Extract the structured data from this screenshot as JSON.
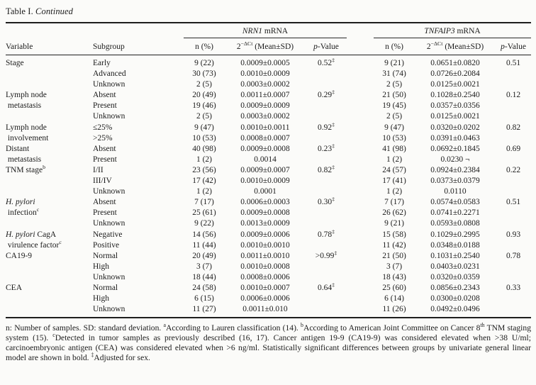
{
  "title": "Table I. *Continued*",
  "table": {
    "groups": [
      {
        "label": "*NRN1* mRNA"
      },
      {
        "label": "*TNFAIP3* mRNA"
      }
    ],
    "columns": [
      "Variable",
      "Subgroup",
      "n (%)",
      "2^−ΔCt^ (Mean±SD)",
      "*p*-Value",
      "n (%)",
      "2^−ΔCt^ (Mean±SD)",
      "*p*-Value"
    ],
    "rows": [
      [
        "Stage",
        "Early",
        "9 (22)",
        "0.0009±0.0005",
        "0.52^‡^",
        "9 (21)",
        "0.0651±0.0820",
        "0.51"
      ],
      [
        "",
        "Advanced",
        "30 (73)",
        "0.0010±0.0009",
        "",
        "31 (74)",
        "0.0726±0.2084",
        ""
      ],
      [
        "",
        "Unknown",
        "2 (5)",
        "0.0003±0.0002",
        "",
        "2 (5)",
        "0.0125±0.0021",
        ""
      ],
      [
        "Lymph node",
        "Absent",
        "20 (49)",
        "0.0011±0.0007",
        "0.29^‡^",
        "21 (50)",
        "0.1028±0.2540",
        "0.12"
      ],
      [
        " metastasis",
        "Present",
        "19 (46)",
        "0.0009±0.0009",
        "",
        "19 (45)",
        "0.0357±0.0356",
        ""
      ],
      [
        "",
        "Unknown",
        "2 (5)",
        "0.0003±0.0002",
        "",
        "2 (5)",
        "0.0125±0.0021",
        ""
      ],
      [
        "Lymph node",
        "≤25%",
        "9 (47)",
        "0.0010±0.0011",
        "0.92^‡^",
        "9 (47)",
        "0.0320±0.0202",
        "0.82"
      ],
      [
        " involvement",
        ">25%",
        "10 (53)",
        "0.0008±0.0007",
        "",
        "10 (53)",
        "0.0391±0.0463",
        ""
      ],
      [
        "Distant",
        "Absent",
        "40 (98)",
        "0.0009±0.0008",
        "0.23^‡^",
        "41 (98)",
        "0.0692±0.1845",
        "0.69"
      ],
      [
        " metastasis",
        "Present",
        "1 (2)",
        "0.0014",
        "",
        "1 (2)",
        "0.0230 ¬",
        ""
      ],
      [
        "TNM stage^b^",
        "I/II",
        "23 (56)",
        "0.0009±0.0007",
        "0.82^‡^",
        "24 (57)",
        "0.0924±0.2384",
        "0.22"
      ],
      [
        "",
        "III/IV",
        "17 (42)",
        "0.0010±0.0009",
        "",
        "17 (41)",
        "0.0373±0.0379",
        ""
      ],
      [
        "",
        "Unknown",
        "1 (2)",
        "0.0001",
        "",
        "1 (2)",
        "0.0110",
        ""
      ],
      [
        "*H. pylori*",
        "Absent",
        "7 (17)",
        "0.0006±0.0003",
        "0.30^‡^",
        "7 (17)",
        "0.0574±0.0583",
        "0.51"
      ],
      [
        " infection^c^",
        "Present",
        "25 (61)",
        "0.0009±0.0008",
        "",
        "26 (62)",
        "0.0741±0.2271",
        ""
      ],
      [
        "",
        "Unknown",
        "9 (22)",
        "0.0013±0.0009",
        "",
        "9 (21)",
        "0.0593±0.0808",
        ""
      ],
      [
        "*H. pylori* CagA",
        "Negative",
        "14 (56)",
        "0.0009±0.0006",
        "0.78^‡^",
        "15 (58)",
        "0.1029±0.2995",
        "0.93"
      ],
      [
        " virulence factor^c^",
        "Positive",
        "11 (44)",
        "0.0010±0.0010",
        "",
        "11 (42)",
        "0.0348±0.0188",
        ""
      ],
      [
        "CA19-9",
        "Normal",
        "20 (49)",
        "0.0011±0.0010",
        ">0.99^‡^",
        "21 (50)",
        "0.1031±0.2540",
        "0.78"
      ],
      [
        "",
        "High",
        "3 (7)",
        "0.0010±0.0008",
        "",
        "3 (7)",
        "0.0403±0.0231",
        ""
      ],
      [
        "",
        "Unknown",
        "18 (44)",
        "0.0008±0.0006",
        "",
        "18 (43)",
        "0.0320±0.0359",
        ""
      ],
      [
        "CEA",
        "Normal",
        "24 (58)",
        "0.0010±0.0007",
        "0.64^‡^",
        "25 (60)",
        "0.0856±0.2343",
        "0.33"
      ],
      [
        "",
        "High",
        "6 (15)",
        "0.0006±0.0006",
        "",
        "6 (14)",
        "0.0300±0.0208",
        ""
      ],
      [
        "",
        "Unknown",
        "11 (27)",
        "0.0011±0.010",
        "",
        "11 (26)",
        "0.0492±0.0496",
        ""
      ]
    ]
  },
  "footnote": "n: Number of samples. SD: standard deviation. ^a^According to Lauren classification (14). ^b^According to American Joint Committee on Cancer 8^th^ TNM staging system (15). ^c^Detected in tumor samples as previously described (16, 17). Cancer antigen 19-9 (CA19-9) was considered elevated when >38 U/ml; carcinoembryonic antigen (CEA) was considered elevated when >6 ng/ml. Statistically significant differences between groups by univariate general linear model are shown in bold. ^‡^Adjusted for sex."
}
